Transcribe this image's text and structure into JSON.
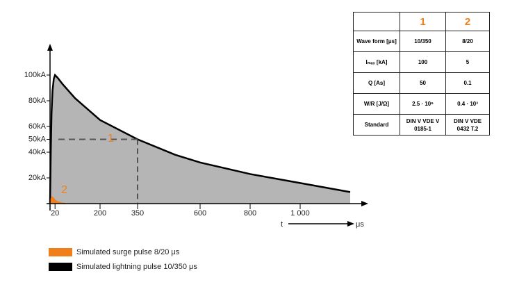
{
  "chart_data": {
    "type": "area",
    "series": [
      {
        "name": "Simulated surge pulse 8/20 μs",
        "color": "#f07f1b",
        "x": [
          0,
          4,
          8,
          14,
          20,
          30,
          45,
          60
        ],
        "values": [
          0,
          3.5,
          5,
          4,
          2.5,
          1.3,
          0.5,
          0
        ]
      },
      {
        "name": "Simulated lightning pulse 10/350 μs",
        "color": "#000000",
        "x": [
          0,
          3,
          6,
          10,
          15,
          20,
          30,
          50,
          100,
          200,
          350,
          500,
          600,
          800,
          1000,
          1200
        ],
        "values": [
          0,
          40,
          70,
          88,
          97,
          100,
          98,
          93,
          82,
          65,
          50,
          38,
          32,
          23,
          16,
          9
        ]
      }
    ],
    "xlim": [
      0,
      1250
    ],
    "ylim": [
      0,
      120
    ],
    "xticks": [
      20,
      200,
      350,
      600,
      800,
      {
        "value": 1000,
        "label": "1 000"
      }
    ],
    "yticks": [
      {
        "value": 20,
        "label": "20kA"
      },
      {
        "value": 40,
        "label": "40kA"
      },
      {
        "value": 50,
        "label": "50kA"
      },
      {
        "value": 60,
        "label": "60kA"
      },
      {
        "value": 80,
        "label": "80kA"
      },
      {
        "value": 100,
        "label": "100kA"
      }
    ],
    "x_label": "t",
    "x_unit": "μs",
    "annotations": [
      "1",
      "2"
    ]
  },
  "table": {
    "header": [
      "1",
      "2"
    ],
    "rows": [
      [
        "Wave form [μs]",
        "10/350",
        "8/20"
      ],
      [
        "Iₘₐₓ [kA]",
        "100",
        "5"
      ],
      [
        "Q [As]",
        "50",
        "0.1"
      ],
      [
        "W/R [J/Ω]",
        "2.5 · 10⁶",
        "0.4 · 10³"
      ],
      [
        "Standard",
        "DIN V VDE V 0185-1",
        "DIN V VDE 0432 T.2"
      ]
    ]
  }
}
